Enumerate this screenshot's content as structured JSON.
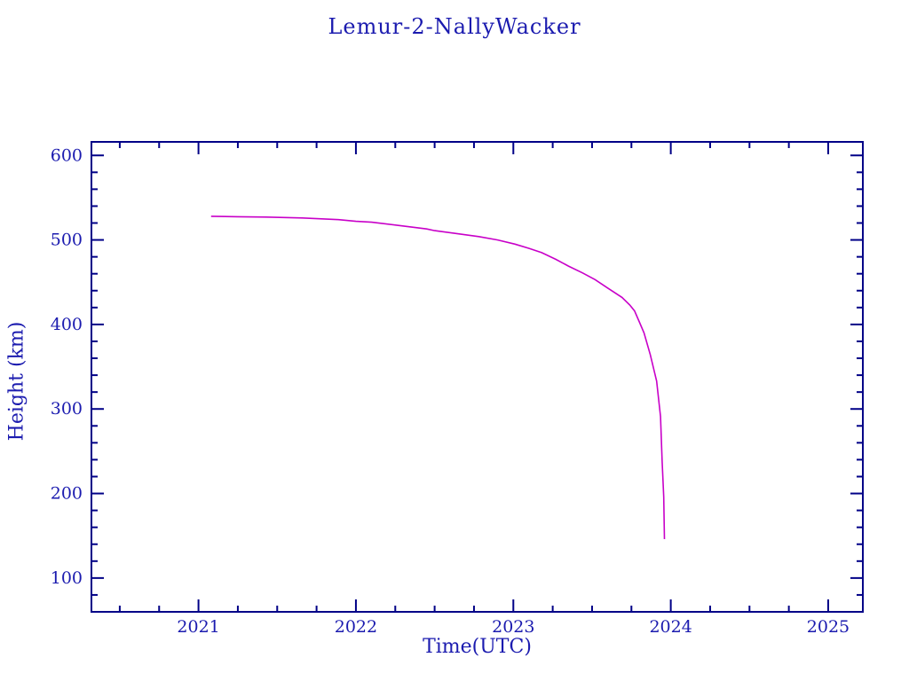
{
  "chart_data": {
    "type": "line",
    "title": "Lemur-2-NallyWacker",
    "xlabel": "Time(UTC)",
    "ylabel": "Height (km)",
    "xlim": [
      2020.32,
      2025.22
    ],
    "ylim": [
      60,
      616
    ],
    "x_major_ticks": [
      2021,
      2022,
      2023,
      2024,
      2025
    ],
    "x_minor_step": 0.25,
    "y_major_ticks": [
      100,
      200,
      300,
      400,
      500,
      600
    ],
    "y_minor_step": 20,
    "grid": false,
    "legend": "none",
    "line_color": "#c800c8",
    "axis_color": "#000087",
    "text_color": "#1b1baf",
    "series": [
      {
        "name": "Lemur-2-NallyWacker height",
        "points": [
          [
            2021.08,
            528
          ],
          [
            2021.25,
            527.5
          ],
          [
            2021.43,
            527
          ],
          [
            2021.66,
            526
          ],
          [
            2021.89,
            524
          ],
          [
            2022.0,
            522
          ],
          [
            2022.1,
            521
          ],
          [
            2022.28,
            517
          ],
          [
            2022.45,
            513
          ],
          [
            2022.5,
            511
          ],
          [
            2022.62,
            508
          ],
          [
            2022.78,
            504
          ],
          [
            2022.9,
            500
          ],
          [
            2023.01,
            495
          ],
          [
            2023.1,
            490
          ],
          [
            2023.18,
            485
          ],
          [
            2023.27,
            477
          ],
          [
            2023.35,
            469
          ],
          [
            2023.44,
            461
          ],
          [
            2023.52,
            453
          ],
          [
            2023.6,
            443
          ],
          [
            2023.69,
            432
          ],
          [
            2023.74,
            423
          ],
          [
            2023.77,
            416
          ],
          [
            2023.8,
            403
          ],
          [
            2023.83,
            390
          ],
          [
            2023.87,
            364
          ],
          [
            2023.91,
            333
          ],
          [
            2023.935,
            291
          ],
          [
            2023.945,
            238
          ],
          [
            2023.955,
            196
          ],
          [
            2023.96,
            146
          ]
        ]
      }
    ]
  }
}
